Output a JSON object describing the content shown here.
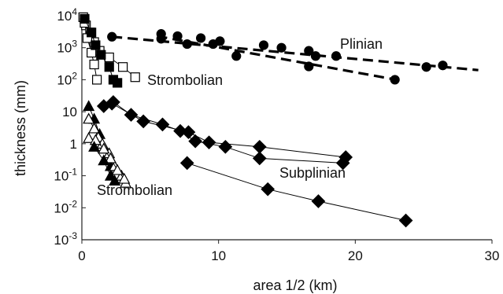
{
  "chart_data": {
    "type": "scatter",
    "xlabel": "area 1/2 (km)",
    "ylabel": "thickness (mm)",
    "xlim": [
      0,
      30
    ],
    "ylim": [
      0.001,
      10000
    ],
    "yscale": "log",
    "x_ticks": [
      "0",
      "10",
      "20",
      "30"
    ],
    "y_ticks": [
      {
        "base": "10",
        "exp": "-3"
      },
      {
        "base": "10",
        "exp": "-2"
      },
      {
        "base": "10",
        "exp": "-1"
      },
      {
        "base": "1",
        "exp": ""
      },
      {
        "base": "10",
        "exp": ""
      },
      {
        "base": "10",
        "exp": "2"
      },
      {
        "base": "10",
        "exp": "3"
      },
      {
        "base": "10",
        "exp": "4"
      }
    ],
    "grid": false,
    "annotations": [
      {
        "text": "Plinian"
      },
      {
        "text": "Strombolian"
      },
      {
        "text": "Subplinian"
      },
      {
        "text": "Strombolian"
      }
    ],
    "plinian_fits": [
      {
        "x": [
          2.2,
          29
        ],
        "y": [
          2200,
          200
        ]
      },
      {
        "x": [
          5.5,
          23
        ],
        "y": [
          2300,
          100
        ]
      }
    ],
    "series": [
      {
        "marker": "filled-circle",
        "line": "none",
        "points": [
          [
            2.2,
            2200
          ],
          [
            5.8,
            2700
          ],
          [
            7.0,
            2300
          ],
          [
            8.7,
            2000
          ],
          [
            9.6,
            1300
          ],
          [
            10.1,
            1600
          ],
          [
            13.3,
            1200
          ],
          [
            14.6,
            1000
          ],
          [
            16.6,
            800
          ],
          [
            17.1,
            550
          ],
          [
            18.6,
            550
          ],
          [
            25.2,
            250
          ],
          [
            26.4,
            280
          ]
        ]
      },
      {
        "marker": "filled-circle",
        "line": "none",
        "points": [
          [
            5.8,
            1900
          ],
          [
            7.7,
            1300
          ],
          [
            11.3,
            550
          ],
          [
            16.6,
            260
          ],
          [
            22.9,
            100
          ]
        ]
      },
      {
        "marker": "open-square",
        "line": "solid",
        "points": [
          [
            0.1,
            9000
          ],
          [
            0.3,
            5000
          ],
          [
            0.6,
            3000
          ],
          [
            0.9,
            1500
          ],
          [
            1.3,
            800
          ],
          [
            2.0,
            500
          ],
          [
            3.0,
            250
          ],
          [
            3.9,
            120
          ]
        ]
      },
      {
        "marker": "open-square",
        "line": "solid",
        "points": [
          [
            0.2,
            6000
          ],
          [
            0.4,
            2000
          ],
          [
            0.7,
            700
          ],
          [
            0.9,
            300
          ],
          [
            1.1,
            100
          ]
        ]
      },
      {
        "marker": "filled-square",
        "line": "solid",
        "points": [
          [
            0.2,
            8000
          ],
          [
            0.7,
            3000
          ],
          [
            1.0,
            1200
          ],
          [
            1.4,
            600
          ],
          [
            2.0,
            250
          ],
          [
            2.3,
            100
          ],
          [
            2.6,
            80
          ]
        ]
      },
      {
        "marker": "filled-diamond",
        "line": "solid",
        "points": [
          [
            1.6,
            15
          ],
          [
            2.3,
            20
          ],
          [
            3.6,
            8
          ],
          [
            5.9,
            4
          ],
          [
            7.2,
            2.5
          ],
          [
            8.3,
            1.2
          ],
          [
            10.5,
            0.8
          ],
          [
            13.0,
            0.35
          ],
          [
            19.1,
            0.25
          ]
        ]
      },
      {
        "marker": "filled-diamond",
        "line": "solid",
        "points": [
          [
            2.2,
            18
          ],
          [
            4.5,
            5
          ],
          [
            7.8,
            2.3
          ],
          [
            9.3,
            1.1
          ],
          [
            13.0,
            0.8
          ],
          [
            19.3,
            0.38
          ]
        ]
      },
      {
        "marker": "filled-diamond",
        "line": "solid",
        "points": [
          [
            7.7,
            0.25
          ],
          [
            13.6,
            0.038
          ],
          [
            17.3,
            0.016
          ],
          [
            23.7,
            0.004
          ]
        ]
      },
      {
        "marker": "filled-triangle",
        "line": "solid",
        "points": [
          [
            0.5,
            15
          ],
          [
            0.9,
            6
          ],
          [
            1.3,
            2
          ],
          [
            1.7,
            0.7
          ],
          [
            2.1,
            0.2
          ],
          [
            2.4,
            0.07
          ]
        ]
      },
      {
        "marker": "open-triangle",
        "line": "solid",
        "points": [
          [
            0.5,
            6
          ],
          [
            0.9,
            3
          ],
          [
            1.2,
            1.6
          ],
          [
            1.5,
            1.0
          ],
          [
            2.0,
            0.5
          ],
          [
            2.4,
            0.2
          ],
          [
            2.9,
            0.1
          ],
          [
            3.2,
            0.06
          ]
        ]
      },
      {
        "marker": "open-triangle",
        "line": "solid",
        "points": [
          [
            0.5,
            1.5
          ],
          [
            1.0,
            1.3
          ],
          [
            1.6,
            0.7
          ],
          [
            2.1,
            0.35
          ],
          [
            2.6,
            0.15
          ],
          [
            3.1,
            0.08
          ]
        ]
      },
      {
        "marker": "filled-triangle",
        "line": "solid",
        "points": [
          [
            0.9,
            0.8
          ],
          [
            1.6,
            0.3
          ],
          [
            2.1,
            0.1
          ]
        ]
      }
    ]
  }
}
